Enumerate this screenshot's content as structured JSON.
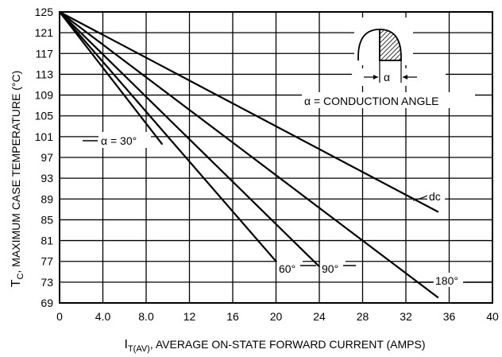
{
  "chart_data": {
    "type": "line",
    "xlabel_main": "I",
    "xlabel_sub": "T(AV)",
    "xlabel_rest": ", AVERAGE ON-STATE FORWARD CURRENT (AMPS)",
    "ylabel_main": "T",
    "ylabel_sub": "C",
    "ylabel_rest": ", MAXIMUM CASE TEMPERATURE (°C)",
    "xlim": [
      0,
      40
    ],
    "ylim": [
      69,
      125
    ],
    "x_ticks": [
      "0",
      "4.0",
      "8.0",
      "12",
      "16",
      "20",
      "24",
      "28",
      "32",
      "36",
      "40"
    ],
    "y_ticks": [
      "125",
      "121",
      "117",
      "113",
      "109",
      "105",
      "101",
      "97",
      "93",
      "89",
      "85",
      "81",
      "77",
      "73",
      "69"
    ],
    "grid": true,
    "series": [
      {
        "name": "α = 30°",
        "x": [
          0,
          9.5
        ],
        "y": [
          125,
          99.5
        ]
      },
      {
        "name": "60°",
        "x": [
          0,
          20
        ],
        "y": [
          125,
          77
        ]
      },
      {
        "name": "90°",
        "x": [
          0,
          24
        ],
        "y": [
          125,
          76
        ]
      },
      {
        "name": "180°",
        "x": [
          0,
          35
        ],
        "y": [
          125,
          70
        ]
      },
      {
        "name": "dc",
        "x": [
          0,
          35
        ],
        "y": [
          125,
          86.5
        ]
      }
    ],
    "labels": {
      "s30": "α = 30°",
      "s60": "60°",
      "s90": "90°",
      "s180": "180°",
      "sdc": "dc"
    },
    "legend": {
      "alpha_symbol": "α",
      "conduction_text": "α = CONDUCTION ANGLE"
    }
  }
}
